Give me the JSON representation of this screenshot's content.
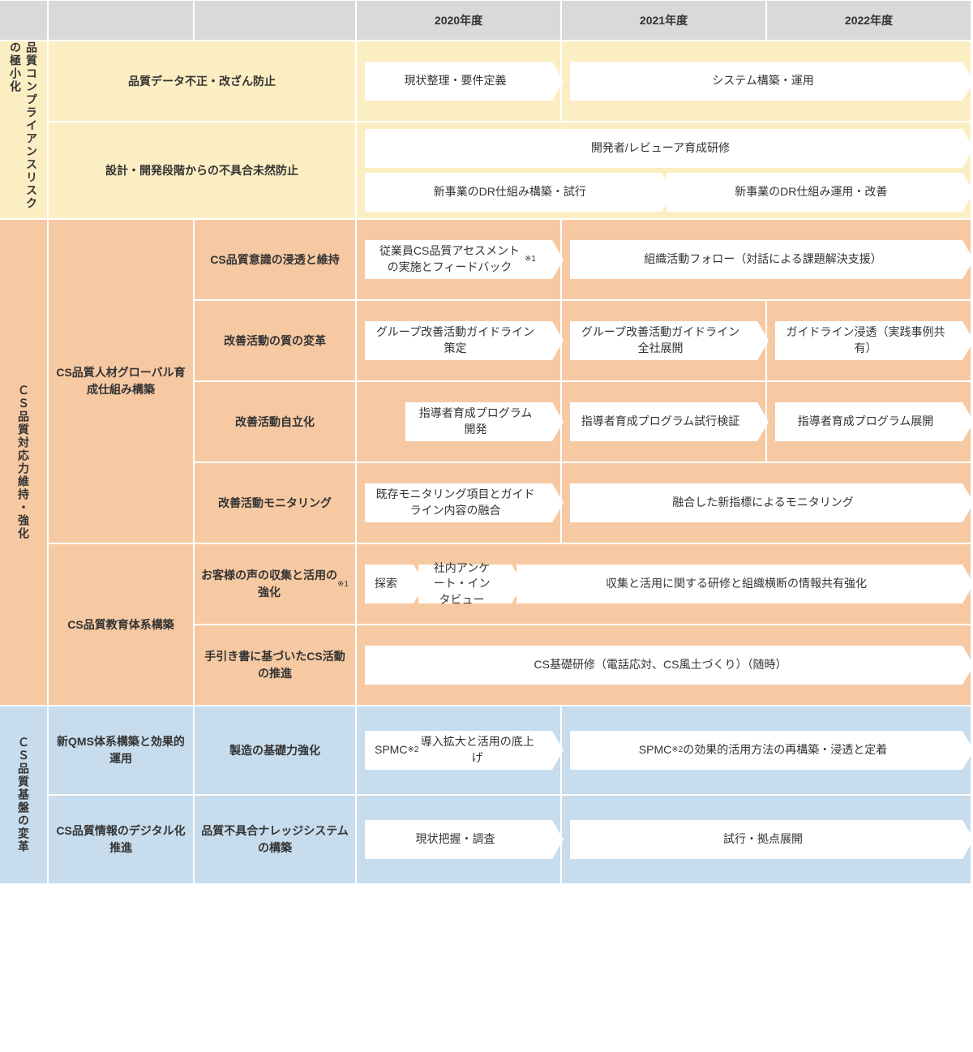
{
  "years": {
    "y1": "2020年度",
    "y2": "2021年度",
    "y3": "2022年度"
  },
  "sections": {
    "compliance": {
      "title": "品質コンプライアンスリスクの極小化",
      "rows": [
        {
          "label": "品質データ不正・改ざん防止",
          "arrows": [
            {
              "span": 1,
              "text": "現状整理・要件定義"
            },
            {
              "span": 2,
              "text": "システム構築・運用"
            }
          ]
        },
        {
          "label": "設計・開発段階からの不具合未然防止",
          "arrows_stack": [
            [
              {
                "span": 3,
                "text": "開発者/レビューア育成研修"
              }
            ],
            [
              {
                "span": 1.5,
                "text": "新事業のDR仕組み構築・試行"
              },
              {
                "span": 1.5,
                "text": "新事業のDR仕組み運用・改善"
              }
            ]
          ]
        }
      ]
    },
    "cs_strength": {
      "title": "ＣＳ品質対応力維持・強化",
      "group1": {
        "label": "CS品質人材グローバル育成仕組み構築",
        "rows": [
          {
            "sublabel": "CS品質意識の浸透と維持",
            "arrows": [
              {
                "span": 1,
                "text": "従業員CS品質アセスメントの実施とフィードバック",
                "sup": "※1"
              },
              {
                "span": 2,
                "text": "組織活動フォロー（対話による課題解決支援）"
              }
            ]
          },
          {
            "sublabel": "改善活動の質の変革",
            "arrows": [
              {
                "span": 1,
                "text": "グループ改善活動ガイドライン策定"
              },
              {
                "span": 1,
                "text": "グループ改善活動ガイドライン全社展開"
              },
              {
                "span": 1,
                "text": "ガイドライン浸透（実践事例共有）"
              }
            ]
          },
          {
            "sublabel": "改善活動自立化",
            "arrows": [
              {
                "span": 1,
                "text": "指導者育成プログラム開発",
                "indent": true
              },
              {
                "span": 1,
                "text": "指導者育成プログラム試行検証"
              },
              {
                "span": 1,
                "text": "指導者育成プログラム展開"
              }
            ]
          },
          {
            "sublabel": "改善活動モニタリング",
            "arrows": [
              {
                "span": 1,
                "text": "既存モニタリング項目とガイドライン内容の融合"
              },
              {
                "span": 2,
                "text": "融合した新指標によるモニタリング"
              }
            ]
          }
        ]
      },
      "group2": {
        "label": "CS品質教育体系構築",
        "rows": [
          {
            "sublabel": "お客様の声の収集と活用の強化",
            "sup": "※1",
            "arrows_seq": [
              {
                "text": "探索",
                "w": "small"
              },
              {
                "text": "社内アンケート・インタビュー",
                "w": "half"
              },
              {
                "text": "収集と活用に関する研修と組織横断の情報共有強化",
                "span": 2
              }
            ]
          },
          {
            "sublabel": "手引き書に基づいたCS活動の推進",
            "arrows": [
              {
                "span": 3,
                "text": "CS基礎研修（電話応対、CS風土づくり）（随時）"
              }
            ]
          }
        ]
      }
    },
    "cs_base": {
      "title": "ＣＳ品質基盤の変革",
      "rows": [
        {
          "label": "新QMS体系構築と効果的運用",
          "sublabel": "製造の基礎力強化",
          "arrows": [
            {
              "span": 1,
              "text_html": "SPMC<sup>※2</sup>導入拡大と活用の底上げ"
            },
            {
              "span": 2,
              "text_html": "SPMC<sup>※2</sup>の効果的活用方法の再構築・浸透と定着"
            }
          ]
        },
        {
          "label": "CS品質情報のデジタル化推進",
          "sublabel": "品質不具合ナレッジシステムの構築",
          "arrows": [
            {
              "span": 1,
              "text": "現状把握・調査"
            },
            {
              "span": 2,
              "text": "試行・拠点展開"
            }
          ]
        }
      ]
    }
  },
  "colors": {
    "yellow": "#fceec3",
    "orange": "#f6c9a3",
    "blue": "#c7dcec",
    "header": "#d9d9d9",
    "arrow": "#ffffff"
  }
}
